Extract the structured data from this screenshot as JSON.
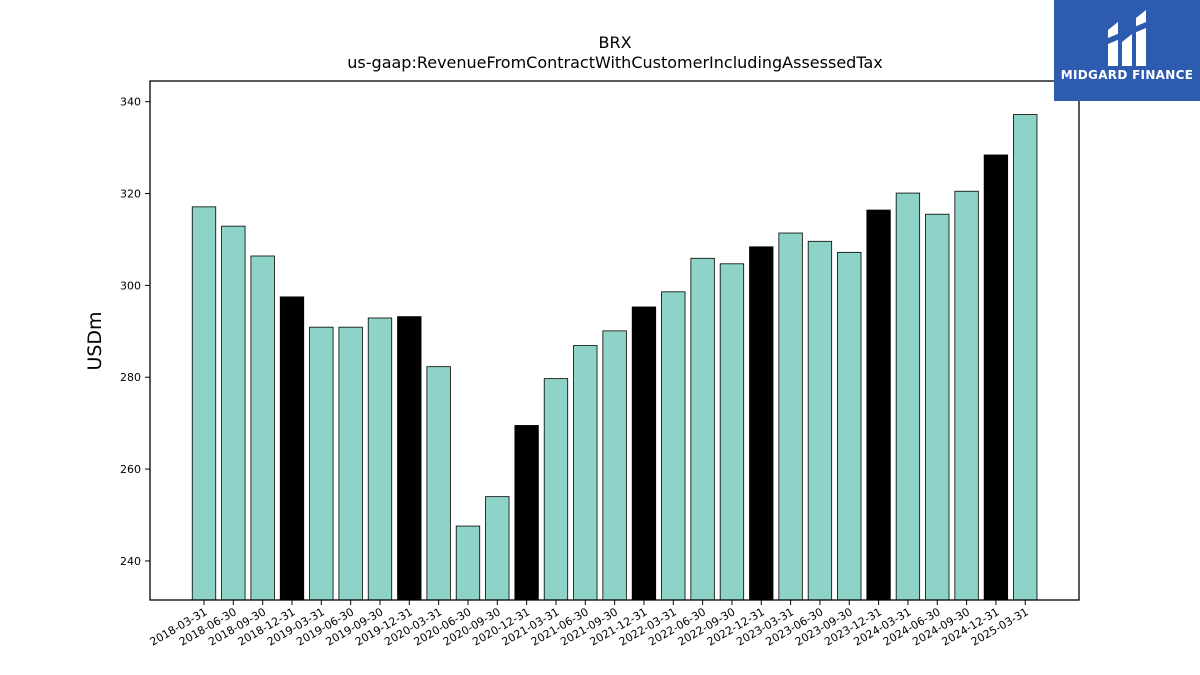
{
  "chart_data": {
    "type": "bar",
    "title": "BRX",
    "subtitle": "us-gaap:RevenueFromContractWithCustomerIncludingAssessedTax",
    "ylabel": "USDm",
    "xlabel": "",
    "ylim": [
      231.5,
      344.5
    ],
    "yticks": [
      240,
      260,
      280,
      300,
      320,
      340
    ],
    "grid": false,
    "categories": [
      "2018-03-31",
      "2018-06-30",
      "2018-09-30",
      "2018-12-31",
      "2019-03-31",
      "2019-06-30",
      "2019-09-30",
      "2019-12-31",
      "2020-03-31",
      "2020-06-30",
      "2020-09-30",
      "2020-12-31",
      "2021-03-31",
      "2021-06-30",
      "2021-09-30",
      "2021-12-31",
      "2022-03-31",
      "2022-06-30",
      "2022-09-30",
      "2022-12-31",
      "2023-03-31",
      "2023-06-30",
      "2023-09-30",
      "2023-12-31",
      "2024-03-31",
      "2024-06-30",
      "2024-09-30",
      "2024-12-31",
      "2025-03-31"
    ],
    "values": [
      317.1,
      312.9,
      306.4,
      297.5,
      290.9,
      290.9,
      292.9,
      293.2,
      282.3,
      247.6,
      254.0,
      269.5,
      279.7,
      286.9,
      290.1,
      295.3,
      298.6,
      305.9,
      304.7,
      308.4,
      311.4,
      309.6,
      307.2,
      316.4,
      320.1,
      315.5,
      320.5,
      328.4,
      337.2
    ],
    "colors": [
      "#8dd3c7",
      "#8dd3c7",
      "#8dd3c7",
      "#000000",
      "#8dd3c7",
      "#8dd3c7",
      "#8dd3c7",
      "#000000",
      "#8dd3c7",
      "#8dd3c7",
      "#8dd3c7",
      "#000000",
      "#8dd3c7",
      "#8dd3c7",
      "#8dd3c7",
      "#000000",
      "#8dd3c7",
      "#8dd3c7",
      "#8dd3c7",
      "#000000",
      "#8dd3c7",
      "#8dd3c7",
      "#8dd3c7",
      "#000000",
      "#8dd3c7",
      "#8dd3c7",
      "#8dd3c7",
      "#000000",
      "#8dd3c7"
    ]
  },
  "logo": {
    "text": "MIDGARD FINANCE",
    "background": "#2d5bb0"
  }
}
